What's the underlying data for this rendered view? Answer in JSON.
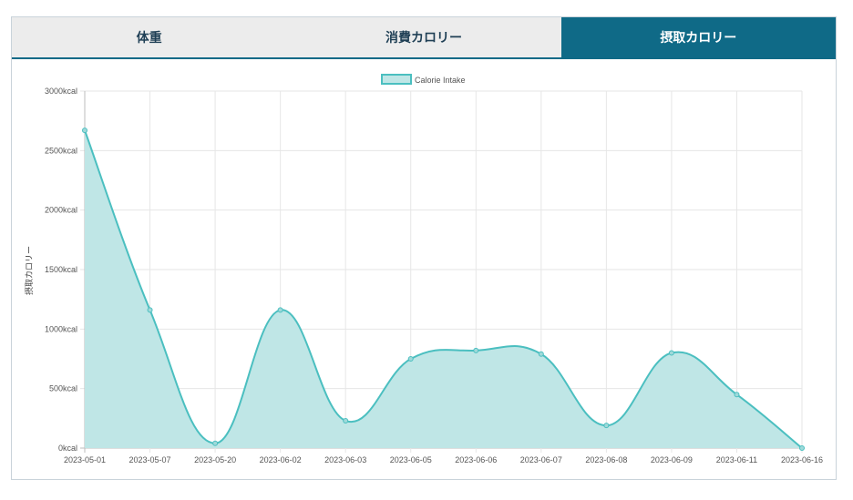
{
  "tabs": [
    {
      "label": "体重",
      "active": false
    },
    {
      "label": "消費カロリー",
      "active": false
    },
    {
      "label": "摂取カロリー",
      "active": true
    }
  ],
  "colors": {
    "accent": "#0f6a87",
    "line": "#4bbfc0",
    "fill": "#bfe6e6"
  },
  "chart_data": {
    "type": "area",
    "ylabel": "摂取カロリー",
    "ylim": [
      0,
      3000
    ],
    "ytick_values": [
      0,
      500,
      1000,
      1500,
      2000,
      2500,
      3000
    ],
    "ytick_labels": [
      "0kcal",
      "500kcal",
      "1000kcal",
      "1500kcal",
      "2000kcal",
      "2500kcal",
      "3000kcal"
    ],
    "categories": [
      "2023-05-01",
      "2023-05-07",
      "2023-05-20",
      "2023-06-02",
      "2023-06-03",
      "2023-06-05",
      "2023-06-06",
      "2023-06-07",
      "2023-06-08",
      "2023-06-09",
      "2023-06-11",
      "2023-06-16"
    ],
    "series": [
      {
        "name": "Calorie Intake",
        "values": [
          2670,
          1160,
          40,
          1160,
          230,
          750,
          820,
          790,
          190,
          800,
          450,
          0
        ]
      }
    ],
    "grid": true,
    "legend": "top-center"
  }
}
